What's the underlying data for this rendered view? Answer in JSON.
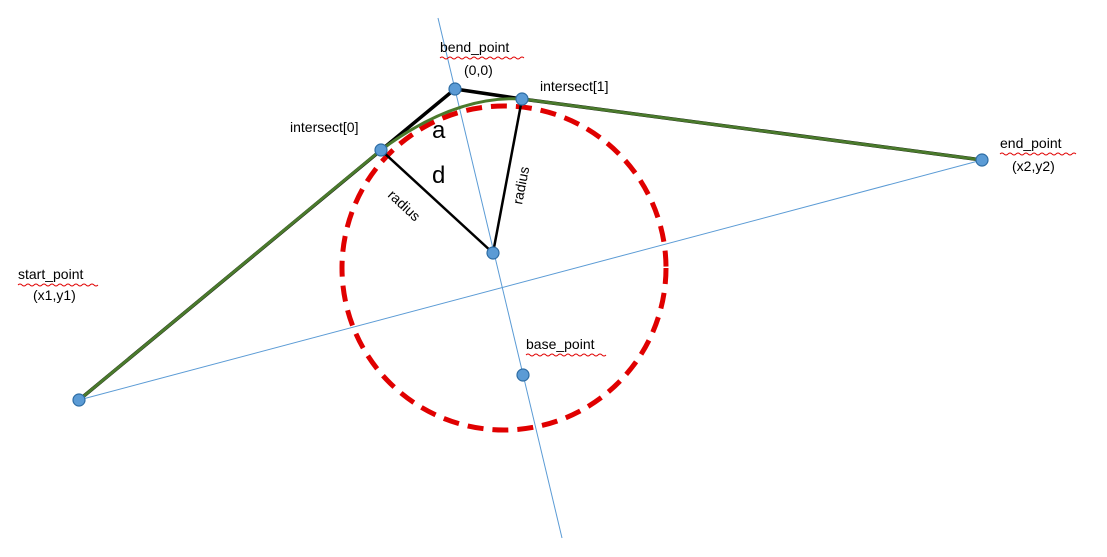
{
  "labels": {
    "bend_point": "bend_point",
    "bend_coords": "(0,0)",
    "intersect1": "intersect[1]",
    "intersect0": "intersect[0]",
    "end_point": "end_point",
    "end_coords": "(x2,y2)",
    "start_point": "start_point",
    "start_coords": "(x1,y1)",
    "base_point": "base_point",
    "angle_a": "a",
    "distance_d": "d",
    "radius_left": "radius",
    "radius_right": "radius"
  },
  "colors": {
    "circle": "#e00000",
    "thin_line": "#5b9bd5",
    "arc": "#4a7a2c",
    "polyline": "#000000",
    "point_fill": "#5b9bd5"
  }
}
